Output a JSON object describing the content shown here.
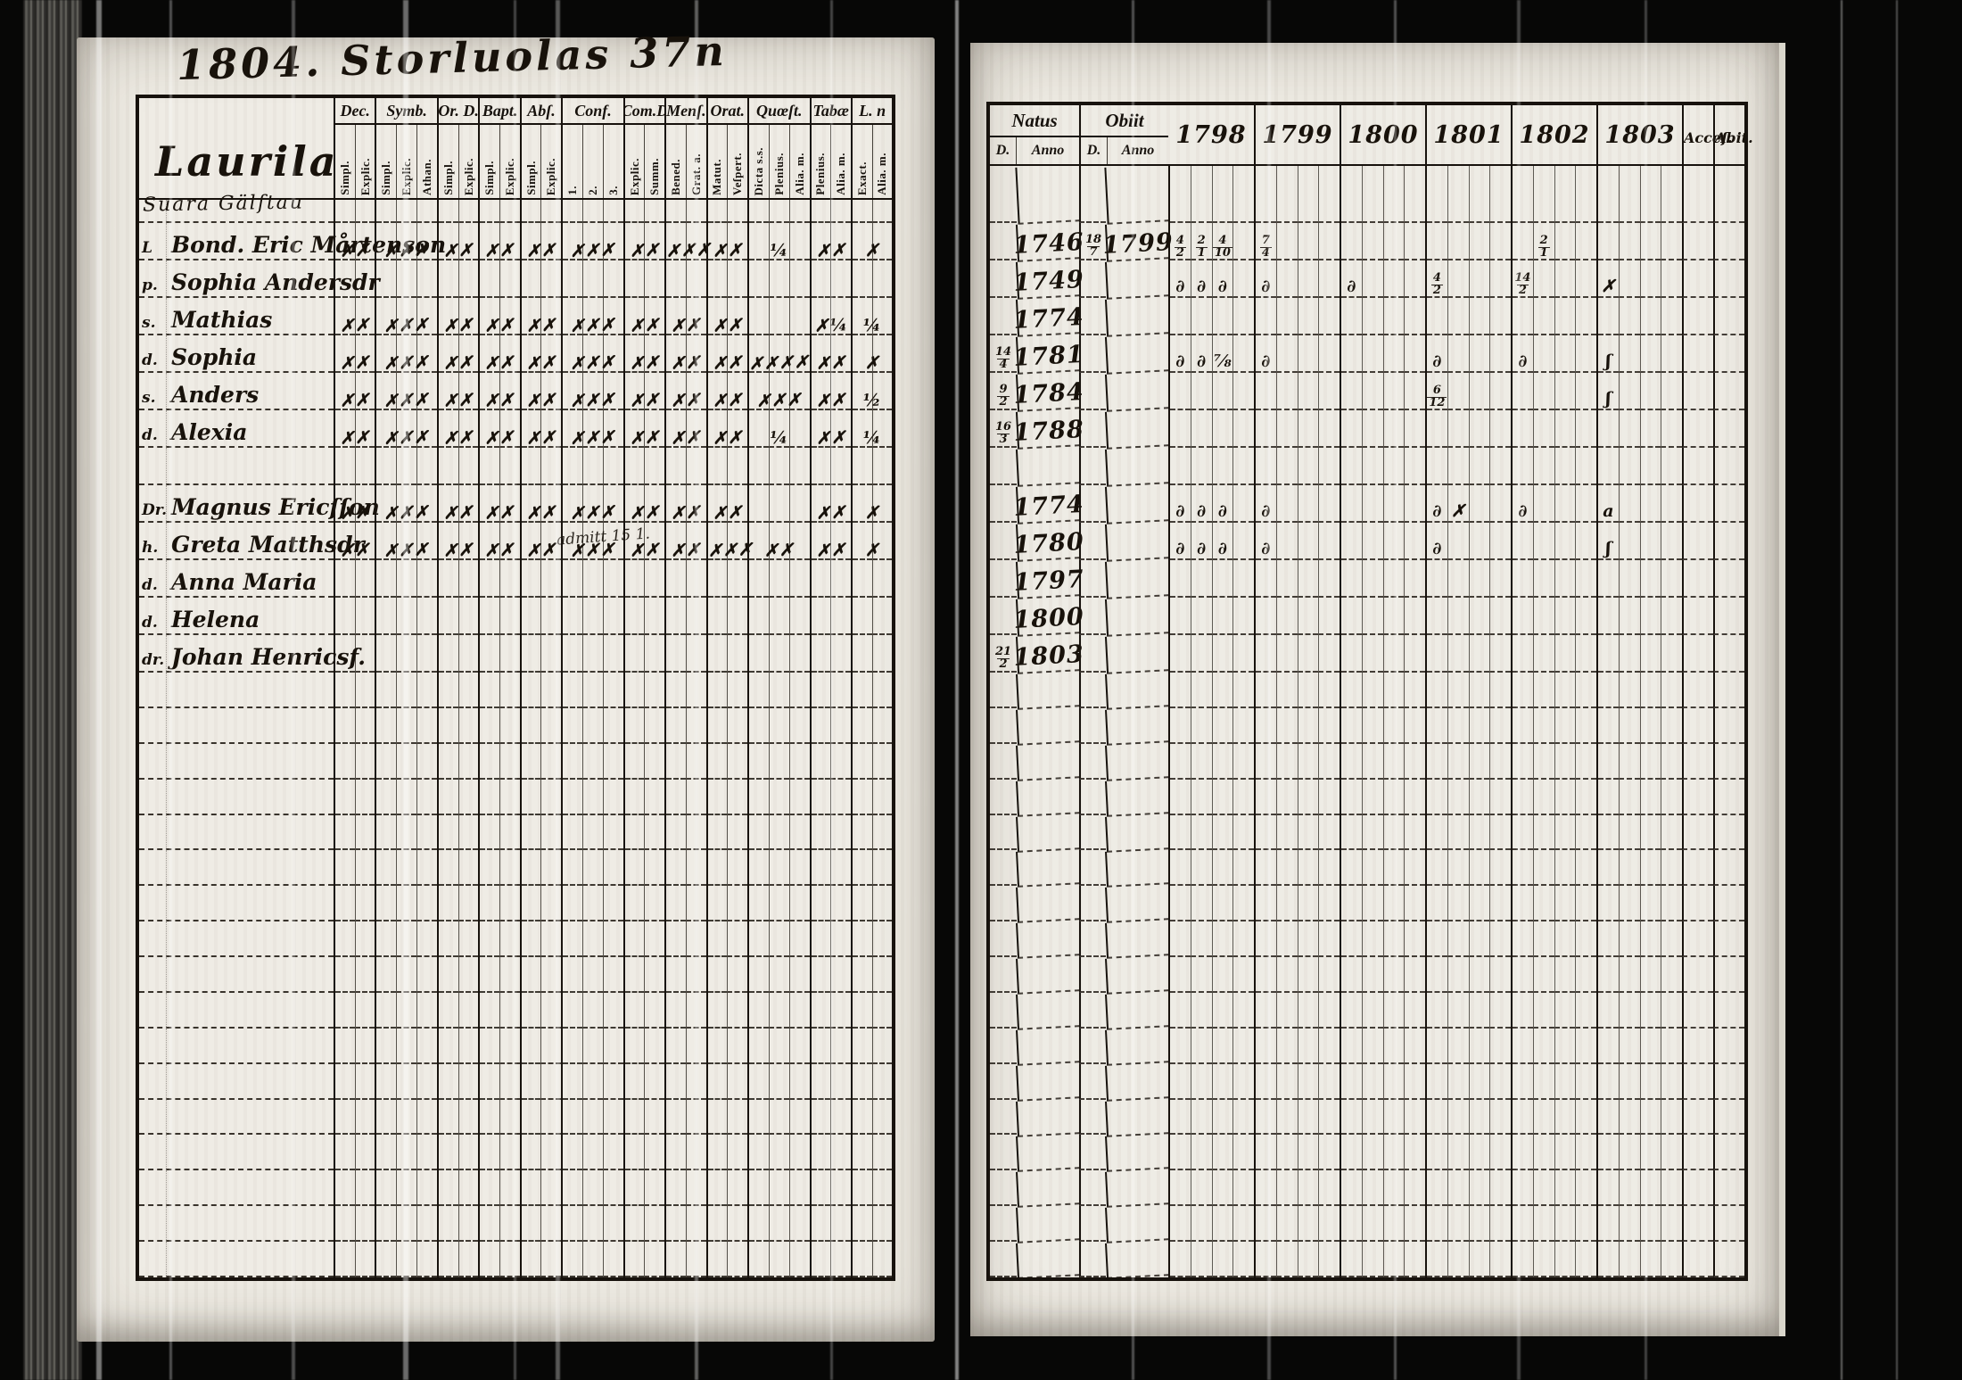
{
  "heading": {
    "text": "1804. Storluolas 37n"
  },
  "left_table": {
    "title": "Laurila",
    "subtitle": "Suara Gälftau",
    "note": "admitt 15 1.",
    "groups": [
      {
        "label": "Dec.",
        "subs": [
          "Simpl.",
          "Explic."
        ]
      },
      {
        "label": "Symb.",
        "subs": [
          "Simpl.",
          "Explic.",
          "Athan."
        ]
      },
      {
        "label": "Or. D.",
        "subs": [
          "Simpl.",
          "Explic."
        ]
      },
      {
        "label": "Bapt.",
        "subs": [
          "Simpl.",
          "Explic."
        ]
      },
      {
        "label": "Abſ.",
        "subs": [
          "Simpl.",
          "Explic."
        ]
      },
      {
        "label": "Conf.",
        "subs": [
          "1.",
          "2.",
          "3."
        ]
      },
      {
        "label": "Com.D",
        "subs": [
          "Explic.",
          "Summ."
        ]
      },
      {
        "label": "Menſ.",
        "subs": [
          "Bened.",
          "Grat. a."
        ]
      },
      {
        "label": "Orat.",
        "subs": [
          "Matut.",
          "Veſpert."
        ]
      },
      {
        "label": "Quœſt.",
        "subs": [
          "Dicta s.s.",
          "Plenius.",
          "Alia. m."
        ]
      },
      {
        "label": "Tabæ",
        "subs": [
          "Plenius.",
          "Alia. m."
        ]
      },
      {
        "label": "L. n",
        "subs": [
          "Exact.",
          "Alia. m."
        ]
      }
    ],
    "rows": [
      {
        "prefix": "L",
        "name": "Bond. Eric Mårtenson",
        "marks": [
          "✗✗",
          "✗✗✗",
          "✗✗",
          "✗✗",
          "✗✗",
          "✗✗✗",
          "✗✗",
          "✗✗✗",
          "✗✗",
          "¼",
          "✗✗",
          "✗"
        ]
      },
      {
        "prefix": "p.",
        "name": "Sophia Andersdr",
        "marks": [
          "",
          "",
          "",
          "",
          "",
          "",
          "",
          "",
          "",
          "",
          "",
          ""
        ]
      },
      {
        "prefix": "s.",
        "name": "Mathias",
        "marks": [
          "✗✗",
          "✗✗✗",
          "✗✗",
          "✗✗",
          "✗✗",
          "✗✗✗",
          "✗✗",
          "✗✗",
          "✗✗",
          "",
          "✗¼",
          "¼"
        ]
      },
      {
        "prefix": "d.",
        "name": "Sophia",
        "marks": [
          "✗✗",
          "✗✗✗",
          "✗✗",
          "✗✗",
          "✗✗",
          "✗✗✗",
          "✗✗",
          "✗✗",
          "✗✗",
          "✗✗✗✗",
          "✗✗",
          "✗"
        ]
      },
      {
        "prefix": "s.",
        "name": "Anders",
        "marks": [
          "✗✗",
          "✗✗✗",
          "✗✗",
          "✗✗",
          "✗✗",
          "✗✗✗",
          "✗✗",
          "✗✗",
          "✗✗",
          "✗✗✗",
          "✗✗",
          "½"
        ]
      },
      {
        "prefix": "d.",
        "name": "Alexia",
        "marks": [
          "✗✗",
          "✗✗✗",
          "✗✗",
          "✗✗",
          "✗✗",
          "✗✗✗",
          "✗✗",
          "✗✗",
          "✗✗",
          "¼",
          "✗✗",
          "¼"
        ]
      },
      {
        "spacer": true,
        "name": "",
        "marks": [
          "",
          "",
          "",
          "",
          "",
          "",
          "",
          "",
          "",
          "",
          "",
          ""
        ]
      },
      {
        "prefix": "Dr.",
        "name": "Magnus Ericſſon",
        "marks": [
          "✗✗",
          "✗✗✗",
          "✗✗",
          "✗✗",
          "✗✗",
          "✗✗✗",
          "✗✗",
          "✗✗",
          "✗✗",
          "",
          "✗✗",
          "✗"
        ]
      },
      {
        "prefix": "h.",
        "name": "Greta Matthsdr",
        "marks": [
          "✗✗",
          "✗✗✗",
          "✗✗",
          "✗✗",
          "✗✗",
          "✗✗✗",
          "✗✗",
          "✗✗",
          "✗✗✗",
          "✗✗",
          "✗✗",
          "✗"
        ]
      },
      {
        "prefix": "d.",
        "name": "Anna Maria",
        "marks": [
          "",
          "",
          "",
          "",
          "",
          "",
          "",
          "",
          "",
          "",
          "",
          ""
        ]
      },
      {
        "prefix": "d.",
        "name": "Helena",
        "marks": [
          "",
          "",
          "",
          "",
          "",
          "",
          "",
          "",
          "",
          "",
          "",
          ""
        ]
      },
      {
        "prefix": "dr.",
        "name": "Johan Henricsf.",
        "marks": [
          "",
          "",
          "",
          "",
          "",
          "",
          "",
          "",
          "",
          "",
          "",
          ""
        ]
      }
    ]
  },
  "right_table": {
    "natus_label": "Natus",
    "obiit_label": "Obiit",
    "d_label": "D.",
    "anno_label": "Anno",
    "years": [
      "1798",
      "1799",
      "1800",
      "1801",
      "1802",
      "1803"
    ],
    "acces_label": "Acceſ.",
    "abit_label": "Abit.",
    "rows": [
      {
        "natus_d": "",
        "natus_anno": "1746",
        "obiit_d": "18/7",
        "obiit_anno": "1799",
        "y": {
          "1798": [
            "4/2",
            "2/1",
            "4/10",
            ""
          ],
          "1799": [
            "7/4",
            "",
            "",
            ""
          ],
          "1802": [
            "",
            "2/1",
            "",
            ""
          ]
        }
      },
      {
        "natus_d": "",
        "natus_anno": "1749",
        "obiit_d": "",
        "obiit_anno": "",
        "y": {
          "1798": [
            "∂",
            "∂",
            "∂",
            ""
          ],
          "1799": [
            "∂",
            "",
            "",
            ""
          ],
          "1800": [
            "∂",
            "",
            "",
            ""
          ],
          "1801": [
            "4/2",
            "",
            "",
            ""
          ],
          "1802": [
            "14/2",
            "",
            "",
            ""
          ],
          "1803": [
            "✗",
            "",
            "",
            ""
          ]
        }
      },
      {
        "natus_d": "",
        "natus_anno": "1774",
        "obiit_d": "",
        "obiit_anno": "",
        "y": {}
      },
      {
        "natus_d": "14/4",
        "natus_anno": "1781",
        "obiit_d": "",
        "obiit_anno": "",
        "y": {
          "1798": [
            "∂",
            "∂",
            "⅞",
            ""
          ],
          "1799": [
            "∂",
            "",
            "",
            ""
          ],
          "1801": [
            "∂",
            "",
            "",
            ""
          ],
          "1802": [
            "∂",
            "",
            "",
            ""
          ],
          "1803": [
            "ʃ",
            "",
            "",
            ""
          ]
        }
      },
      {
        "natus_d": "9/2",
        "natus_anno": "1784",
        "obiit_d": "",
        "obiit_anno": "",
        "y": {
          "1801": [
            "6/12",
            "",
            "",
            ""
          ],
          "1803": [
            "ʃ",
            "",
            "",
            ""
          ]
        }
      },
      {
        "natus_d": "16/3",
        "natus_anno": "1788",
        "obiit_d": "",
        "obiit_anno": "",
        "y": {}
      },
      {
        "spacer": true
      },
      {
        "natus_d": "",
        "natus_anno": "1774",
        "obiit_d": "",
        "obiit_anno": "",
        "y": {
          "1798": [
            "∂",
            "∂",
            "∂",
            ""
          ],
          "1799": [
            "∂",
            "",
            "",
            ""
          ],
          "1801": [
            "∂",
            "✗",
            "",
            ""
          ],
          "1802": [
            "∂",
            "",
            "",
            ""
          ],
          "1803": [
            "a",
            "",
            "",
            ""
          ]
        }
      },
      {
        "natus_d": "",
        "natus_anno": "1780",
        "obiit_d": "",
        "obiit_anno": "",
        "y": {
          "1798": [
            "∂",
            "∂",
            "∂",
            ""
          ],
          "1799": [
            "∂",
            "",
            "",
            ""
          ],
          "1801": [
            "∂",
            "",
            "",
            ""
          ],
          "1803": [
            "ʃ",
            "",
            "",
            ""
          ]
        }
      },
      {
        "natus_d": "",
        "natus_anno": "1797",
        "obiit_d": "",
        "obiit_anno": "",
        "y": {}
      },
      {
        "natus_d": "",
        "natus_anno": "1800",
        "obiit_d": "",
        "obiit_anno": "",
        "y": {}
      },
      {
        "natus_d": "21/2",
        "natus_anno": "1803",
        "obiit_d": "",
        "obiit_anno": "",
        "y": {}
      }
    ]
  },
  "layout": {
    "left_filler_rows": 17,
    "right_filler_rows": 17
  }
}
